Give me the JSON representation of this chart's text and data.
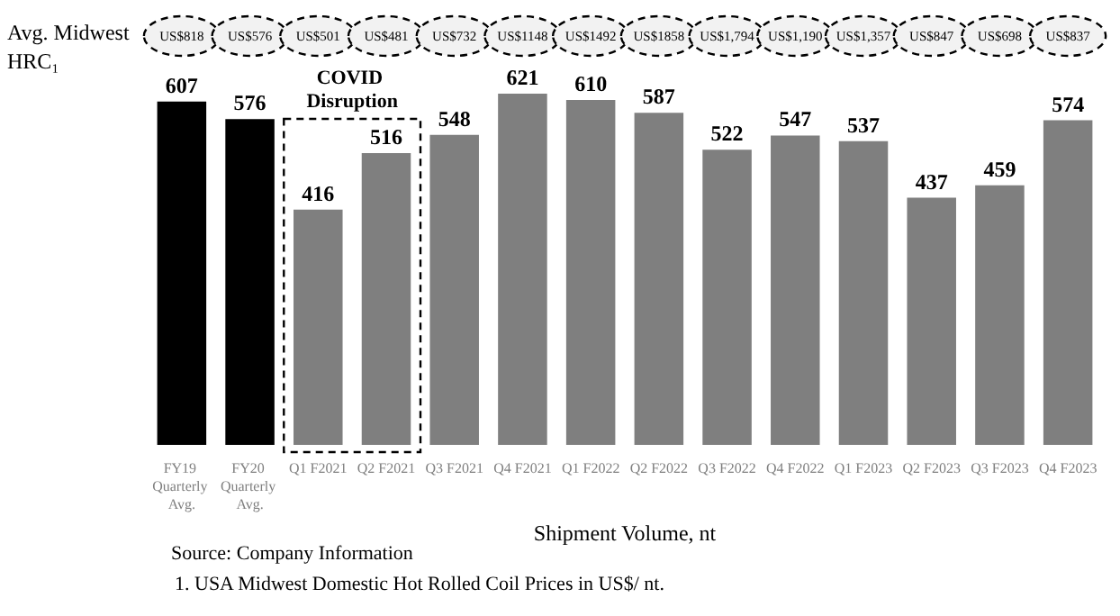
{
  "chart_data": {
    "type": "bar",
    "xlabel": "Shipment Volume, nt",
    "categories": [
      "FY19 Quarterly Avg.",
      "FY20 Quarterly Avg.",
      "Q1 F2021",
      "Q2 F2021",
      "Q3 F2021",
      "Q4 F2021",
      "Q1 F2022",
      "Q2 F2022",
      "Q3 F2022",
      "Q4 F2022",
      "Q1 F2023",
      "Q2 F2023",
      "Q3 F2023",
      "Q4 F2023"
    ],
    "values": [
      607,
      576,
      416,
      516,
      548,
      621,
      610,
      587,
      522,
      547,
      537,
      437,
      459,
      574
    ],
    "colors": [
      "#000000",
      "#000000",
      "#7f7f7f",
      "#7f7f7f",
      "#7f7f7f",
      "#7f7f7f",
      "#7f7f7f",
      "#7f7f7f",
      "#7f7f7f",
      "#7f7f7f",
      "#7f7f7f",
      "#7f7f7f",
      "#7f7f7f",
      "#7f7f7f"
    ],
    "tick_labels": "x",
    "data_labels": true,
    "annotations": [
      "Avg. Midwest HRC₁",
      "US$818",
      "US$576",
      "US$501",
      "US$481",
      "US$732",
      "US$1148",
      "US$1492",
      "US$1858",
      "US$1,794",
      "US$1,190",
      "US$1,357",
      "US$847",
      "US$698",
      "US$837",
      "COVID Disruption",
      "Source: Company Information",
      "1. USA Midwest Domestic Hot Rolled Coil Prices in US$/ nt."
    ]
  }
}
